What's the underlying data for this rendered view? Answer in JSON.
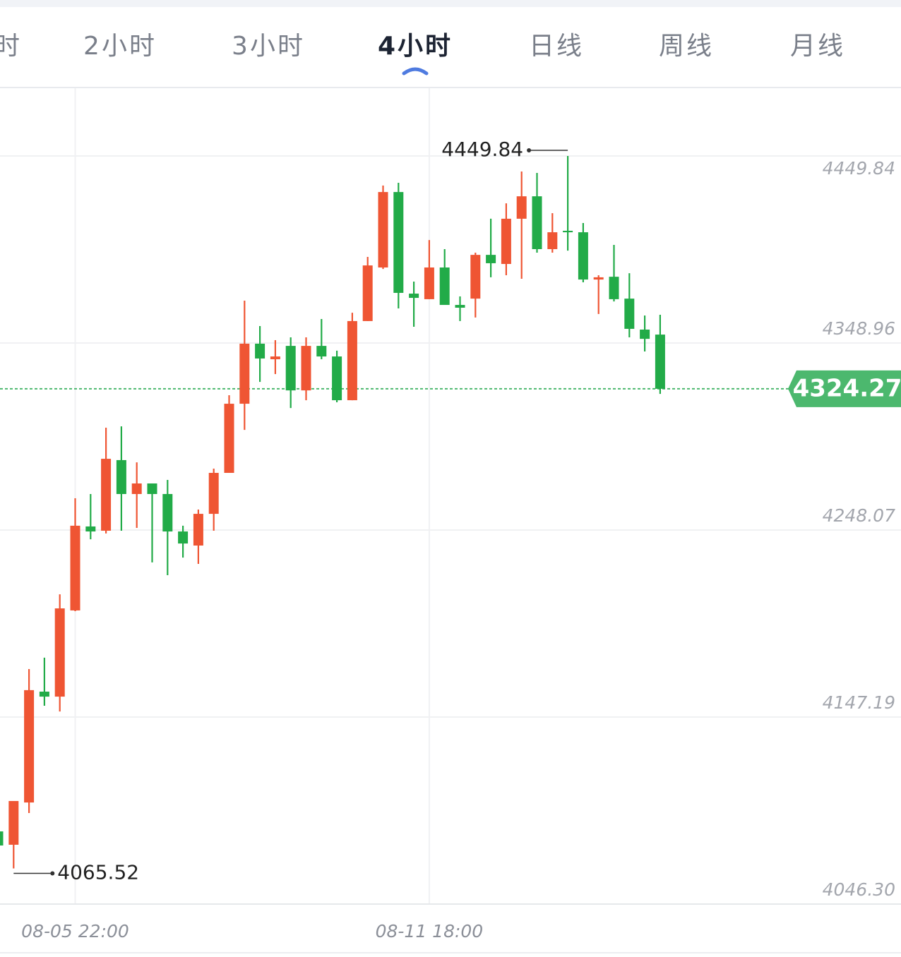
{
  "tabs": [
    "时",
    "2小时",
    "3小时",
    "4小时",
    "日线",
    "周线",
    "月线"
  ],
  "active_tab": "4小时",
  "chart_data": {
    "type": "candlestick",
    "x": [
      null,
      null,
      null,
      null,
      null,
      "08-05 22:00",
      null,
      null,
      null,
      null,
      null,
      null,
      null,
      null,
      null,
      null,
      null,
      null,
      null,
      null,
      null,
      null,
      null,
      null,
      null,
      null,
      null,
      null,
      "08-11 18:00",
      null,
      null,
      null,
      null,
      null,
      null,
      null,
      null,
      null,
      null,
      null,
      null,
      null,
      null,
      null
    ],
    "open": [
      4085.5,
      4078.3,
      4101.1,
      4160.9,
      4158.2,
      4204.7,
      4250.0,
      4247.7,
      4285.8,
      4267.5,
      4273.2,
      4267.5,
      4247.3,
      4239.7,
      4256.8,
      4278.9,
      4316.2,
      4348.6,
      4340.2,
      4347.4,
      4323.4,
      4347.4,
      4341.7,
      4318.1,
      4360.8,
      4389.7,
      4430.4,
      4375.6,
      4372.6,
      4389.7,
      4369.5,
      4372.9,
      4396.5,
      4391.6,
      4416.0,
      4428.1,
      4399.6,
      4409.5,
      4408.7,
      4383.2,
      4384.7,
      4372.9,
      4356.2,
      4353.5
    ],
    "high": [
      4088.6,
      4101.9,
      4173.1,
      4179.2,
      4213.4,
      4265.2,
      4267.5,
      4303.3,
      4304.0,
      4284.6,
      4273.2,
      4275.1,
      4250.4,
      4259.1,
      4281.2,
      4320.8,
      4371.8,
      4358.1,
      4350.5,
      4352.0,
      4352.0,
      4361.9,
      4344.8,
      4365.3,
      4395.4,
      4433.9,
      4435.4,
      4382.1,
      4404.5,
      4399.6,
      4374.1,
      4397.7,
      4416.0,
      4424.3,
      4441.5,
      4440.7,
      4419.0,
      4449.84,
      4413.7,
      4385.5,
      4401.9,
      4386.6,
      4363.8,
      4364.2
    ],
    "low": [
      4075.2,
      4065.52,
      4095.4,
      4153.3,
      4150.2,
      4204.3,
      4243.1,
      4246.2,
      4247.7,
      4249.2,
      4230.6,
      4223.7,
      4233.2,
      4229.8,
      4247.7,
      4278.9,
      4302.1,
      4328.0,
      4332.2,
      4313.9,
      4318.1,
      4340.2,
      4317.0,
      4318.1,
      4360.8,
      4388.9,
      4367.6,
      4357.7,
      4372.6,
      4369.5,
      4360.8,
      4362.7,
      4384.4,
      4385.5,
      4383.6,
      4397.7,
      4397.7,
      4398.8,
      4381.7,
      4364.6,
      4371.4,
      4352.0,
      4344.4,
      4321.5
    ],
    "close": [
      4077.9,
      4101.9,
      4161.7,
      4158.2,
      4205.8,
      4250.4,
      4247.3,
      4286.5,
      4267.5,
      4273.2,
      4267.5,
      4247.3,
      4240.8,
      4256.8,
      4278.9,
      4316.2,
      4348.6,
      4340.6,
      4341.7,
      4323.4,
      4347.4,
      4341.7,
      4318.1,
      4360.8,
      4390.8,
      4430.4,
      4376.0,
      4373.3,
      4389.7,
      4369.5,
      4368.0,
      4396.5,
      4392.0,
      4416.0,
      4428.1,
      4399.6,
      4408.7,
      4408.7,
      4383.2,
      4384.4,
      4372.6,
      4356.6,
      4351.2,
      4324.27
    ],
    "up_color": "#ef5533",
    "down_color": "#22ab48",
    "ylim": [
      4046.3,
      4486.4
    ],
    "yticks": [
      4449.84,
      4348.96,
      4248.07,
      4147.19,
      {
        "value": 4046.3,
        "label": "4046.30"
      }
    ],
    "grid": true,
    "max_price": 4449.84,
    "min_price": 4065.52,
    "last_price": 4324.27,
    "last_color": "#4cb86e"
  }
}
